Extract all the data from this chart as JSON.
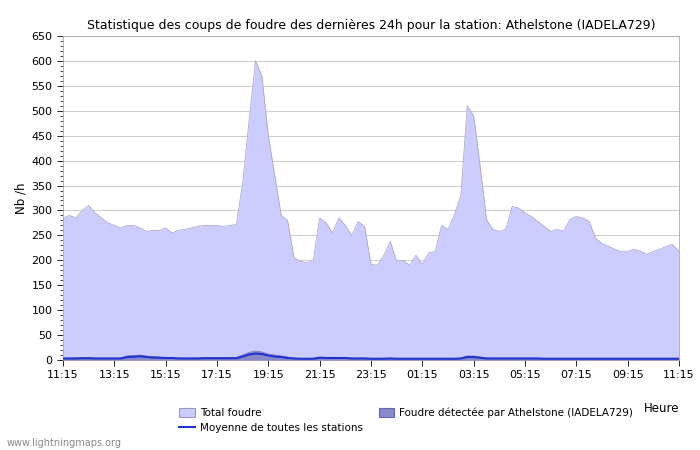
{
  "title": "Statistique des coups de foudre des dernières 24h pour la station: Athelstone (IADELA729)",
  "ylabel": "Nb /h",
  "xlabel_heure": "Heure",
  "watermark": "www.lightningmaps.org",
  "ylim": [
    0,
    650
  ],
  "yticks": [
    0,
    50,
    100,
    150,
    200,
    250,
    300,
    350,
    400,
    450,
    500,
    550,
    600,
    650
  ],
  "xtick_labels": [
    "11:15",
    "13:15",
    "15:15",
    "17:15",
    "19:15",
    "21:15",
    "23:15",
    "01:15",
    "03:15",
    "05:15",
    "07:15",
    "09:15",
    "11:15"
  ],
  "total_foudre_color": "#ccccff",
  "total_foudre_edge_color": "#aaaacc",
  "detected_color": "#8888cc",
  "detected_edge_color": "#6666bb",
  "moyenne_color": "#2233cc",
  "background_color": "#ffffff",
  "grid_color": "#cccccc",
  "legend1": "Total foudre",
  "legend2": "Moyenne de toutes les stations",
  "legend3": "Foudre détectée par Athelstone (IADELA729)",
  "n_points": 97,
  "total_foudre_values": [
    285,
    290,
    285,
    300,
    310,
    295,
    285,
    275,
    270,
    265,
    270,
    270,
    265,
    258,
    260,
    260,
    265,
    255,
    260,
    262,
    265,
    268,
    270,
    270,
    270,
    268,
    270,
    272,
    355,
    480,
    600,
    570,
    450,
    370,
    290,
    280,
    205,
    198,
    195,
    200,
    285,
    275,
    255,
    285,
    270,
    250,
    278,
    268,
    192,
    190,
    210,
    238,
    198,
    200,
    190,
    210,
    192,
    215,
    218,
    270,
    262,
    292,
    330,
    510,
    490,
    390,
    282,
    262,
    258,
    262,
    308,
    305,
    295,
    288,
    278,
    268,
    258,
    262,
    258,
    282,
    288,
    285,
    278,
    244,
    234,
    228,
    222,
    218,
    218,
    222,
    218,
    212,
    218,
    222,
    228,
    232,
    218
  ],
  "detected_values": [
    4,
    4,
    4,
    5,
    5,
    4,
    4,
    4,
    4,
    4,
    8,
    9,
    10,
    8,
    7,
    6,
    5,
    5,
    4,
    4,
    4,
    4,
    5,
    5,
    5,
    5,
    5,
    5,
    10,
    15,
    18,
    16,
    12,
    10,
    8,
    6,
    4,
    3,
    3,
    3,
    6,
    5,
    5,
    5,
    5,
    4,
    4,
    4,
    3,
    3,
    3,
    4,
    3,
    3,
    3,
    3,
    3,
    3,
    3,
    3,
    3,
    3,
    4,
    8,
    8,
    6,
    4,
    4,
    4,
    4,
    4,
    4,
    4,
    4,
    4,
    3,
    3,
    3,
    3,
    3,
    3,
    3,
    3,
    3,
    3,
    3,
    3,
    3,
    3,
    3,
    3,
    3,
    3,
    3,
    3,
    3,
    3
  ],
  "moyenne_values": [
    3,
    3,
    3,
    3.5,
    3.5,
    3,
    3,
    3,
    3,
    3,
    6,
    6.5,
    7.5,
    6,
    5,
    4.5,
    4,
    4,
    3,
    3,
    3,
    3,
    3.5,
    3.5,
    3.5,
    3.5,
    3.5,
    3.5,
    7,
    11,
    13,
    12,
    9,
    7,
    6,
    4,
    3,
    2.5,
    2.5,
    2.5,
    4.5,
    4,
    4,
    4,
    4,
    3,
    3,
    3,
    2.5,
    2.5,
    2.5,
    3,
    2.5,
    2.5,
    2.5,
    2.5,
    2.5,
    2.5,
    2.5,
    2.5,
    2.5,
    2.5,
    3,
    6,
    6,
    4.5,
    3,
    3,
    3,
    3,
    3,
    3,
    3,
    3,
    3,
    2.5,
    2.5,
    2.5,
    2.5,
    2.5,
    2.5,
    2.5,
    2.5,
    2.5,
    2.5,
    2.5,
    2.5,
    2.5,
    2.5,
    2.5,
    2.5,
    2.5,
    2.5,
    2.5,
    2.5,
    2.5,
    2.5
  ]
}
